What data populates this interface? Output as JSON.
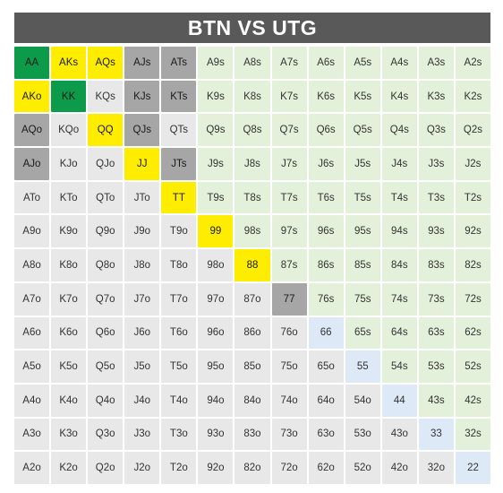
{
  "title": "BTN VS UTG",
  "colors": {
    "green": "#0b9b4a",
    "yellow": "#ffed00",
    "dark_gray": "#a6a6a6",
    "offsuit_bg": "#e8e8e8",
    "suited_bg": "#e3f0da",
    "pair_bg": "#dde9f6",
    "title_bg": "#595959"
  },
  "grid": [
    [
      {
        "t": "AA",
        "c": "green"
      },
      {
        "t": "AKs",
        "c": "yellow"
      },
      {
        "t": "AQs",
        "c": "yellow"
      },
      {
        "t": "AJs",
        "c": "darkgray"
      },
      {
        "t": "ATs",
        "c": "darkgray"
      },
      {
        "t": "A9s",
        "c": "suited"
      },
      {
        "t": "A8s",
        "c": "suited"
      },
      {
        "t": "A7s",
        "c": "suited"
      },
      {
        "t": "A6s",
        "c": "suited"
      },
      {
        "t": "A5s",
        "c": "suited"
      },
      {
        "t": "A4s",
        "c": "suited"
      },
      {
        "t": "A3s",
        "c": "suited"
      },
      {
        "t": "A2s",
        "c": "suited"
      }
    ],
    [
      {
        "t": "AKo",
        "c": "yellow"
      },
      {
        "t": "KK",
        "c": "green"
      },
      {
        "t": "KQs",
        "c": "offsuit"
      },
      {
        "t": "KJs",
        "c": "darkgray"
      },
      {
        "t": "KTs",
        "c": "darkgray"
      },
      {
        "t": "K9s",
        "c": "suited"
      },
      {
        "t": "K8s",
        "c": "suited"
      },
      {
        "t": "K7s",
        "c": "suited"
      },
      {
        "t": "K6s",
        "c": "suited"
      },
      {
        "t": "K5s",
        "c": "suited"
      },
      {
        "t": "K4s",
        "c": "suited"
      },
      {
        "t": "K3s",
        "c": "suited"
      },
      {
        "t": "K2s",
        "c": "suited"
      }
    ],
    [
      {
        "t": "AQo",
        "c": "darkgray"
      },
      {
        "t": "KQo",
        "c": "offsuit"
      },
      {
        "t": "QQ",
        "c": "yellow"
      },
      {
        "t": "QJs",
        "c": "darkgray"
      },
      {
        "t": "QTs",
        "c": "offsuit"
      },
      {
        "t": "Q9s",
        "c": "suited"
      },
      {
        "t": "Q8s",
        "c": "suited"
      },
      {
        "t": "Q7s",
        "c": "suited"
      },
      {
        "t": "Q6s",
        "c": "suited"
      },
      {
        "t": "Q5s",
        "c": "suited"
      },
      {
        "t": "Q4s",
        "c": "suited"
      },
      {
        "t": "Q3s",
        "c": "suited"
      },
      {
        "t": "Q2s",
        "c": "suited"
      }
    ],
    [
      {
        "t": "AJo",
        "c": "darkgray"
      },
      {
        "t": "KJo",
        "c": "offsuit"
      },
      {
        "t": "QJo",
        "c": "offsuit"
      },
      {
        "t": "JJ",
        "c": "yellow"
      },
      {
        "t": "JTs",
        "c": "darkgray"
      },
      {
        "t": "J9s",
        "c": "suited"
      },
      {
        "t": "J8s",
        "c": "suited"
      },
      {
        "t": "J7s",
        "c": "suited"
      },
      {
        "t": "J6s",
        "c": "suited"
      },
      {
        "t": "J5s",
        "c": "suited"
      },
      {
        "t": "J4s",
        "c": "suited"
      },
      {
        "t": "J3s",
        "c": "suited"
      },
      {
        "t": "J2s",
        "c": "suited"
      }
    ],
    [
      {
        "t": "ATo",
        "c": "offsuit"
      },
      {
        "t": "KTo",
        "c": "offsuit"
      },
      {
        "t": "QTo",
        "c": "offsuit"
      },
      {
        "t": "JTo",
        "c": "offsuit"
      },
      {
        "t": "TT",
        "c": "yellow"
      },
      {
        "t": "T9s",
        "c": "suited"
      },
      {
        "t": "T8s",
        "c": "suited"
      },
      {
        "t": "T7s",
        "c": "suited"
      },
      {
        "t": "T6s",
        "c": "suited"
      },
      {
        "t": "T5s",
        "c": "suited"
      },
      {
        "t": "T4s",
        "c": "suited"
      },
      {
        "t": "T3s",
        "c": "suited"
      },
      {
        "t": "T2s",
        "c": "suited"
      }
    ],
    [
      {
        "t": "A9o",
        "c": "offsuit"
      },
      {
        "t": "K9o",
        "c": "offsuit"
      },
      {
        "t": "Q9o",
        "c": "offsuit"
      },
      {
        "t": "J9o",
        "c": "offsuit"
      },
      {
        "t": "T9o",
        "c": "offsuit"
      },
      {
        "t": "99",
        "c": "yellow"
      },
      {
        "t": "98s",
        "c": "suited"
      },
      {
        "t": "97s",
        "c": "suited"
      },
      {
        "t": "96s",
        "c": "suited"
      },
      {
        "t": "95s",
        "c": "suited"
      },
      {
        "t": "94s",
        "c": "suited"
      },
      {
        "t": "93s",
        "c": "suited"
      },
      {
        "t": "92s",
        "c": "suited"
      }
    ],
    [
      {
        "t": "A8o",
        "c": "offsuit"
      },
      {
        "t": "K8o",
        "c": "offsuit"
      },
      {
        "t": "Q8o",
        "c": "offsuit"
      },
      {
        "t": "J8o",
        "c": "offsuit"
      },
      {
        "t": "T8o",
        "c": "offsuit"
      },
      {
        "t": "98o",
        "c": "offsuit"
      },
      {
        "t": "88",
        "c": "yellow"
      },
      {
        "t": "87s",
        "c": "suited"
      },
      {
        "t": "86s",
        "c": "suited"
      },
      {
        "t": "85s",
        "c": "suited"
      },
      {
        "t": "84s",
        "c": "suited"
      },
      {
        "t": "83s",
        "c": "suited"
      },
      {
        "t": "82s",
        "c": "suited"
      }
    ],
    [
      {
        "t": "A7o",
        "c": "offsuit"
      },
      {
        "t": "K7o",
        "c": "offsuit"
      },
      {
        "t": "Q7o",
        "c": "offsuit"
      },
      {
        "t": "J7o",
        "c": "offsuit"
      },
      {
        "t": "T7o",
        "c": "offsuit"
      },
      {
        "t": "97o",
        "c": "offsuit"
      },
      {
        "t": "87o",
        "c": "offsuit"
      },
      {
        "t": "77",
        "c": "darkgray"
      },
      {
        "t": "76s",
        "c": "suited"
      },
      {
        "t": "75s",
        "c": "suited"
      },
      {
        "t": "74s",
        "c": "suited"
      },
      {
        "t": "73s",
        "c": "suited"
      },
      {
        "t": "72s",
        "c": "suited"
      }
    ],
    [
      {
        "t": "A6o",
        "c": "offsuit"
      },
      {
        "t": "K6o",
        "c": "offsuit"
      },
      {
        "t": "Q6o",
        "c": "offsuit"
      },
      {
        "t": "J6o",
        "c": "offsuit"
      },
      {
        "t": "T6o",
        "c": "offsuit"
      },
      {
        "t": "96o",
        "c": "offsuit"
      },
      {
        "t": "86o",
        "c": "offsuit"
      },
      {
        "t": "76o",
        "c": "offsuit"
      },
      {
        "t": "66",
        "c": "pair"
      },
      {
        "t": "65s",
        "c": "suited"
      },
      {
        "t": "64s",
        "c": "suited"
      },
      {
        "t": "63s",
        "c": "suited"
      },
      {
        "t": "62s",
        "c": "suited"
      }
    ],
    [
      {
        "t": "A5o",
        "c": "offsuit"
      },
      {
        "t": "K5o",
        "c": "offsuit"
      },
      {
        "t": "Q5o",
        "c": "offsuit"
      },
      {
        "t": "J5o",
        "c": "offsuit"
      },
      {
        "t": "T5o",
        "c": "offsuit"
      },
      {
        "t": "95o",
        "c": "offsuit"
      },
      {
        "t": "85o",
        "c": "offsuit"
      },
      {
        "t": "75o",
        "c": "offsuit"
      },
      {
        "t": "65o",
        "c": "offsuit"
      },
      {
        "t": "55",
        "c": "pair"
      },
      {
        "t": "54s",
        "c": "suited"
      },
      {
        "t": "53s",
        "c": "suited"
      },
      {
        "t": "52s",
        "c": "suited"
      }
    ],
    [
      {
        "t": "A4o",
        "c": "offsuit"
      },
      {
        "t": "K4o",
        "c": "offsuit"
      },
      {
        "t": "Q4o",
        "c": "offsuit"
      },
      {
        "t": "J4o",
        "c": "offsuit"
      },
      {
        "t": "T4o",
        "c": "offsuit"
      },
      {
        "t": "94o",
        "c": "offsuit"
      },
      {
        "t": "84o",
        "c": "offsuit"
      },
      {
        "t": "74o",
        "c": "offsuit"
      },
      {
        "t": "64o",
        "c": "offsuit"
      },
      {
        "t": "54o",
        "c": "offsuit"
      },
      {
        "t": "44",
        "c": "pair"
      },
      {
        "t": "43s",
        "c": "suited"
      },
      {
        "t": "42s",
        "c": "suited"
      }
    ],
    [
      {
        "t": "A3o",
        "c": "offsuit"
      },
      {
        "t": "K3o",
        "c": "offsuit"
      },
      {
        "t": "Q3o",
        "c": "offsuit"
      },
      {
        "t": "J3o",
        "c": "offsuit"
      },
      {
        "t": "T3o",
        "c": "offsuit"
      },
      {
        "t": "93o",
        "c": "offsuit"
      },
      {
        "t": "83o",
        "c": "offsuit"
      },
      {
        "t": "73o",
        "c": "offsuit"
      },
      {
        "t": "63o",
        "c": "offsuit"
      },
      {
        "t": "53o",
        "c": "offsuit"
      },
      {
        "t": "43o",
        "c": "offsuit"
      },
      {
        "t": "33",
        "c": "pair"
      },
      {
        "t": "32s",
        "c": "suited"
      }
    ],
    [
      {
        "t": "A2o",
        "c": "offsuit"
      },
      {
        "t": "K2o",
        "c": "offsuit"
      },
      {
        "t": "Q2o",
        "c": "offsuit"
      },
      {
        "t": "J2o",
        "c": "offsuit"
      },
      {
        "t": "T2o",
        "c": "offsuit"
      },
      {
        "t": "92o",
        "c": "offsuit"
      },
      {
        "t": "82o",
        "c": "offsuit"
      },
      {
        "t": "72o",
        "c": "offsuit"
      },
      {
        "t": "62o",
        "c": "offsuit"
      },
      {
        "t": "52o",
        "c": "offsuit"
      },
      {
        "t": "42o",
        "c": "offsuit"
      },
      {
        "t": "32o",
        "c": "offsuit"
      },
      {
        "t": "22",
        "c": "pair"
      }
    ]
  ]
}
